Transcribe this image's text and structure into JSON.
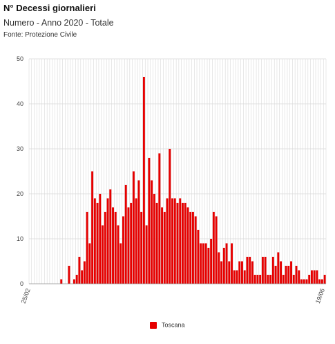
{
  "header": {
    "title": "N° Decessi giornalieri",
    "subtitle": "Numero - Anno 2020 - Totale",
    "source": "Fonte: Protezione Civile"
  },
  "colors": {
    "bar": "#e60000",
    "grid": "#d9d9d9"
  },
  "chart_data": {
    "type": "bar",
    "title": "N° Decessi giornalieri",
    "xlabel": "",
    "ylabel": "",
    "ylim": [
      0,
      50
    ],
    "yticks": [
      "0",
      "10",
      "20",
      "30",
      "40",
      "50"
    ],
    "xtick_labels": [
      "25/02",
      "19/06"
    ],
    "grid": true,
    "legend_position": "bottom",
    "series": [
      {
        "name": "Toscana",
        "values": [
          0,
          0,
          0,
          0,
          0,
          0,
          0,
          0,
          0,
          0,
          0,
          0,
          1,
          0,
          0,
          4,
          0,
          1,
          2,
          6,
          3,
          5,
          16,
          9,
          25,
          19,
          18,
          20,
          13,
          16,
          19,
          21,
          17,
          16,
          13,
          9,
          15,
          22,
          17,
          18,
          25,
          19,
          23,
          16,
          46,
          13,
          28,
          23,
          20,
          18,
          29,
          17,
          16,
          19,
          30,
          19,
          19,
          18,
          19,
          18,
          18,
          17,
          16,
          16,
          15,
          12,
          9,
          9,
          9,
          8,
          10,
          16,
          15,
          7,
          5,
          8,
          9,
          5,
          9,
          3,
          3,
          5,
          5,
          3,
          6,
          6,
          5,
          2,
          2,
          2,
          6,
          6,
          2,
          2,
          6,
          4,
          7,
          5,
          2,
          4,
          4,
          5,
          2,
          4,
          3,
          1,
          1,
          1,
          2,
          3,
          3,
          3,
          1,
          1,
          2
        ]
      }
    ]
  }
}
